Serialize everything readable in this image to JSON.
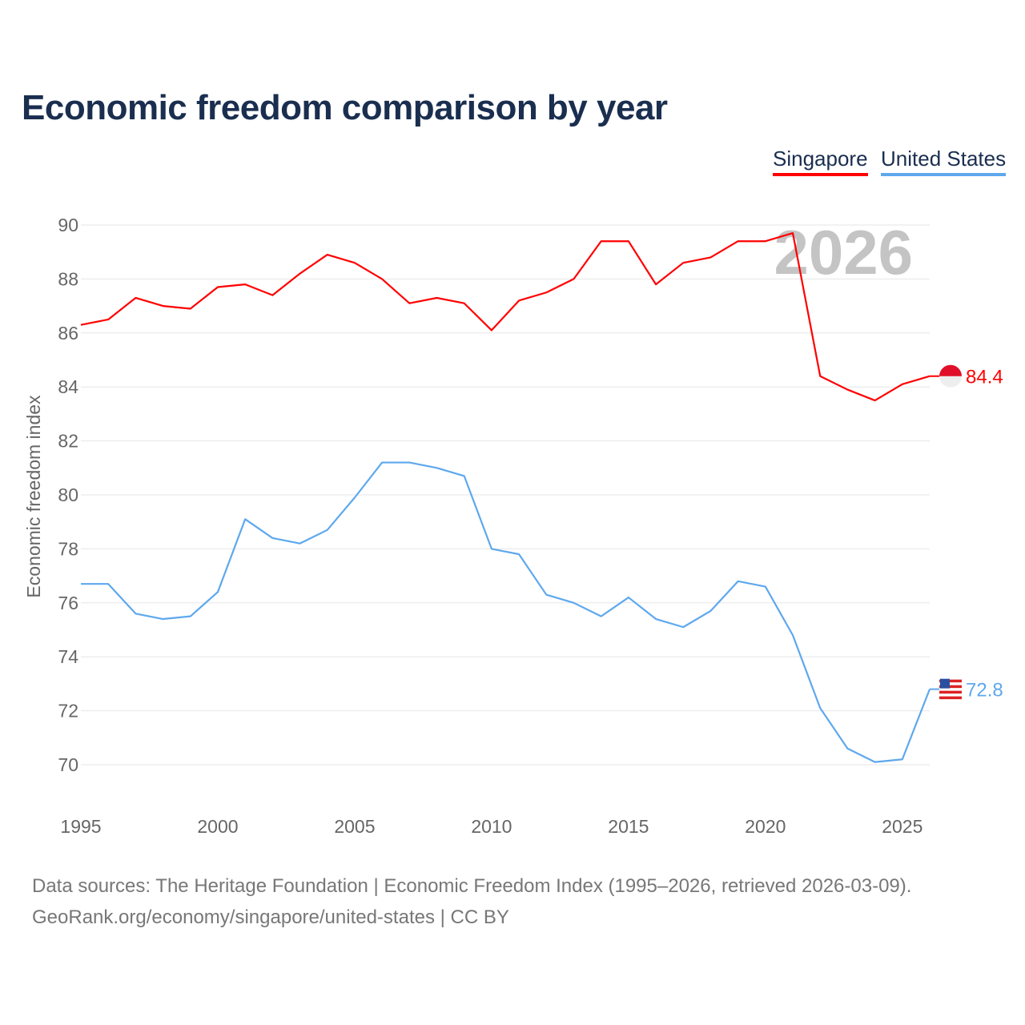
{
  "chart_data": {
    "type": "line",
    "title": "Economic freedom comparison by year",
    "xlabel": "",
    "ylabel": "Economic freedom index",
    "xlim": [
      1995,
      2026
    ],
    "ylim": [
      70,
      90
    ],
    "yticks": [
      70,
      72,
      74,
      76,
      78,
      80,
      82,
      84,
      86,
      88,
      90
    ],
    "xticks": [
      1995,
      2000,
      2005,
      2010,
      2015,
      2020,
      2025
    ],
    "grid": true,
    "legend_placement": "top-right",
    "year_watermark": "2026",
    "x": [
      1995,
      1996,
      1997,
      1998,
      1999,
      2000,
      2001,
      2002,
      2003,
      2004,
      2005,
      2006,
      2007,
      2008,
      2009,
      2010,
      2011,
      2012,
      2013,
      2014,
      2015,
      2016,
      2017,
      2018,
      2019,
      2020,
      2021,
      2022,
      2023,
      2024,
      2025,
      2026
    ],
    "series": [
      {
        "name": "Singapore",
        "color": "#ff0000",
        "end_label": "84.4",
        "values": [
          86.3,
          86.5,
          87.3,
          87.0,
          86.9,
          87.7,
          87.8,
          87.4,
          88.2,
          88.9,
          88.6,
          88.0,
          87.1,
          87.3,
          87.1,
          86.1,
          87.2,
          87.5,
          88.0,
          89.4,
          89.4,
          87.8,
          88.6,
          88.8,
          89.4,
          89.4,
          89.7,
          84.4,
          83.9,
          83.5,
          84.1,
          84.4
        ]
      },
      {
        "name": "United States",
        "color": "#5ea8ee",
        "end_label": "72.8",
        "values": [
          76.7,
          76.7,
          75.6,
          75.4,
          75.5,
          76.4,
          79.1,
          78.4,
          78.2,
          78.7,
          79.9,
          81.2,
          81.2,
          81.0,
          80.7,
          78.0,
          77.8,
          76.3,
          76.0,
          75.5,
          76.2,
          75.4,
          75.1,
          75.7,
          76.8,
          76.6,
          74.8,
          72.1,
          70.6,
          70.1,
          70.2,
          72.8
        ]
      }
    ]
  },
  "footer": {
    "line1": "Data sources: The Heritage Foundation | Economic Freedom Index (1995–2026, retrieved 2026-03-09).",
    "line2": "GeoRank.org/economy/singapore/united-states | CC BY"
  }
}
